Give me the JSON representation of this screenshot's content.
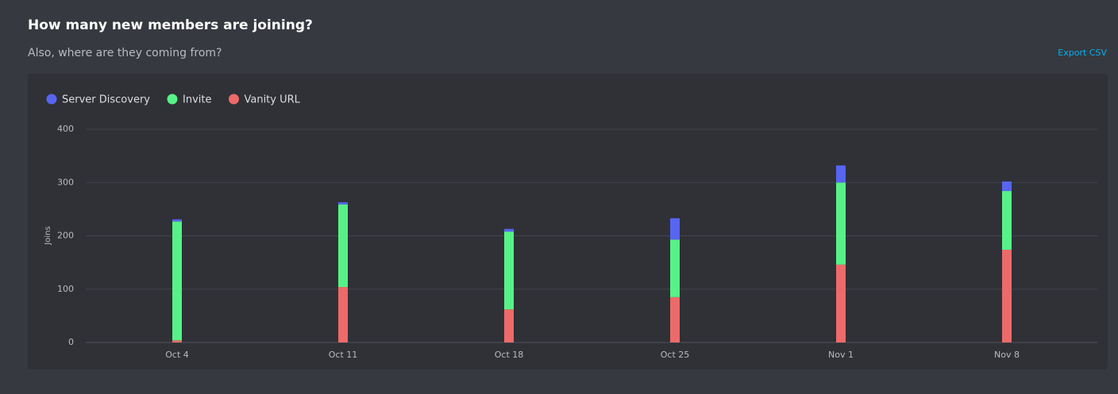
{
  "header": {
    "title": "How many new members are joining?",
    "subtitle": "Also, where are they coming from?",
    "export": "Export CSV"
  },
  "chart_data": {
    "type": "bar",
    "stacked": true,
    "y_label": "Joins",
    "categories": [
      "Oct 4",
      "Oct 11",
      "Oct 18",
      "Oct 25",
      "Nov 1",
      "Nov 8"
    ],
    "series": [
      {
        "name": "Server Discovery",
        "color": "#5865f2",
        "values": [
          4,
          4,
          5,
          40,
          32,
          18
        ]
      },
      {
        "name": "Invite",
        "color": "#57f287",
        "values": [
          223,
          155,
          146,
          108,
          154,
          110
        ]
      },
      {
        "name": "Vanity URL",
        "color": "#ed6a6a",
        "values": [
          4,
          104,
          62,
          85,
          146,
          174
        ]
      }
    ],
    "ylim": [
      0,
      400
    ],
    "yticks": [
      0,
      100,
      200,
      300,
      400
    ],
    "grid": true
  }
}
